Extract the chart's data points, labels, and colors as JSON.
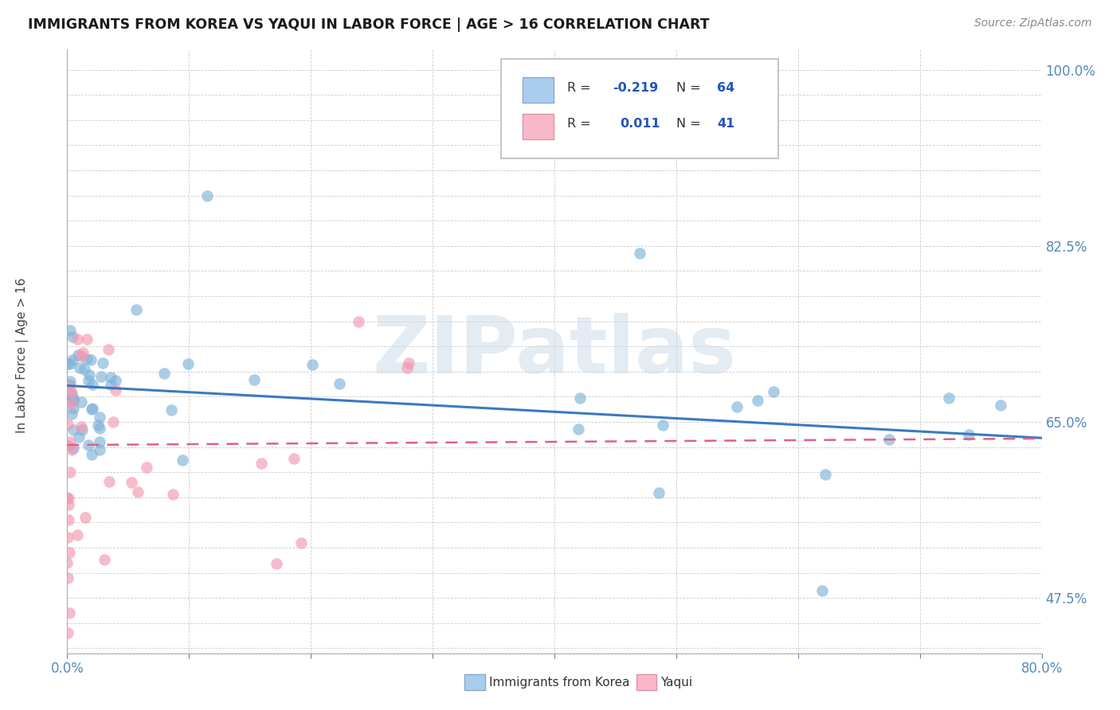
{
  "title": "IMMIGRANTS FROM KOREA VS YAQUI IN LABOR FORCE | AGE > 16 CORRELATION CHART",
  "source": "Source: ZipAtlas.com",
  "ylabel": "In Labor Force | Age > 16",
  "xmin": 0.0,
  "xmax": 0.8,
  "ymin": 0.42,
  "ymax": 1.02,
  "korea_color": "#7fb3d8",
  "yaqui_color": "#f498b0",
  "trend_korea_color": "#3a7abf",
  "trend_yaqui_color": "#e06080",
  "watermark": "ZIPatlas",
  "korea_seed": 77,
  "yaqui_seed": 33
}
